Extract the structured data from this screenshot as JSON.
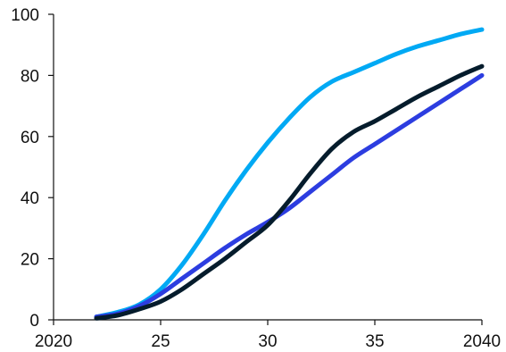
{
  "chart_data": {
    "type": "line",
    "title": "",
    "xlabel": "",
    "ylabel": "",
    "xlim": [
      2020,
      2040
    ],
    "ylim": [
      0,
      100
    ],
    "xticks": [
      {
        "value": 2020,
        "label": "2020"
      },
      {
        "value": 2025,
        "label": "25"
      },
      {
        "value": 2030,
        "label": "30"
      },
      {
        "value": 2035,
        "label": "35"
      },
      {
        "value": 2040,
        "label": "2040"
      }
    ],
    "yticks": [
      {
        "value": 0,
        "label": "0"
      },
      {
        "value": 20,
        "label": "20"
      },
      {
        "value": 40,
        "label": "40"
      },
      {
        "value": 60,
        "label": "60"
      },
      {
        "value": 80,
        "label": "80"
      },
      {
        "value": 100,
        "label": "100"
      }
    ],
    "grid": false,
    "legend": "none",
    "series": [
      {
        "color": "#00a9f4",
        "x": [
          2022,
          2023,
          2024,
          2025,
          2026,
          2027,
          2028,
          2029,
          2030,
          2031,
          2032,
          2033,
          2034,
          2035,
          2036,
          2037,
          2038,
          2039,
          2040
        ],
        "y": [
          1,
          2.5,
          5,
          10,
          18,
          28,
          39,
          49,
          58,
          66,
          73,
          78,
          81,
          84,
          87,
          89.5,
          91.5,
          93.5,
          95
        ]
      },
      {
        "color": "#2c3de0",
        "x": [
          2022,
          2023,
          2024,
          2025,
          2026,
          2027,
          2028,
          2029,
          2030,
          2031,
          2032,
          2033,
          2034,
          2035,
          2036,
          2037,
          2038,
          2039,
          2040
        ],
        "y": [
          1,
          2,
          4.5,
          8.5,
          13.5,
          18.5,
          23.5,
          28,
          32,
          36.5,
          42,
          47.5,
          53,
          57.5,
          62,
          66.5,
          71,
          75.5,
          80
        ]
      },
      {
        "color": "#051c2c",
        "x": [
          2022,
          2023,
          2024,
          2025,
          2026,
          2027,
          2028,
          2029,
          2030,
          2031,
          2032,
          2033,
          2034,
          2035,
          2036,
          2037,
          2038,
          2039,
          2040
        ],
        "y": [
          0.5,
          1.5,
          3.5,
          6,
          10,
          15,
          20,
          25.5,
          31,
          39,
          48,
          56,
          61.5,
          65,
          69,
          73,
          76.5,
          80,
          83
        ]
      }
    ]
  }
}
